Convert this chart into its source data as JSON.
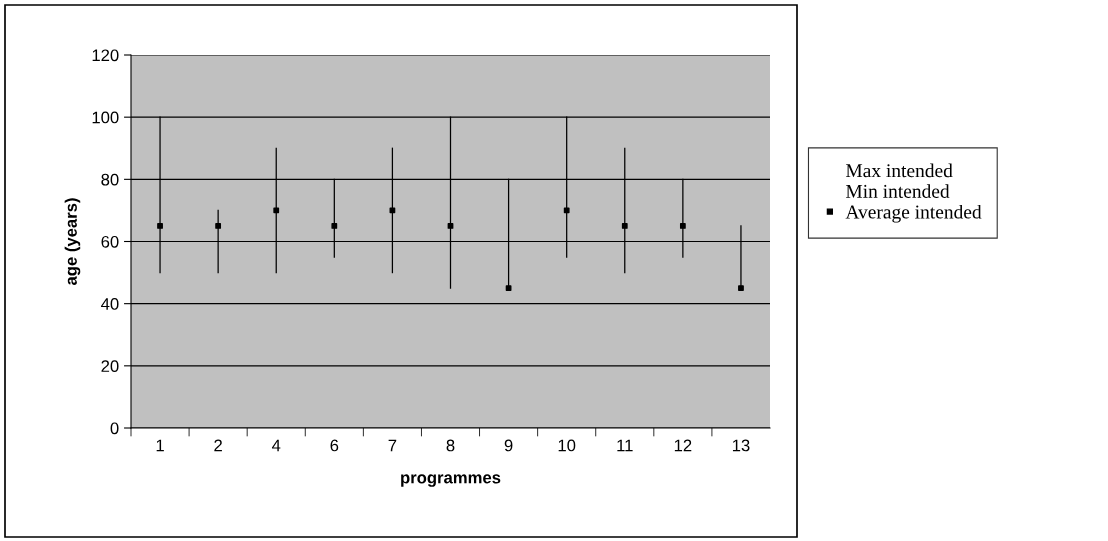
{
  "chart_data": {
    "type": "scatter",
    "xlabel": "programmes",
    "ylabel": "age (years)",
    "categories": [
      "1",
      "2",
      "4",
      "6",
      "7",
      "8",
      "9",
      "10",
      "11",
      "12",
      "13"
    ],
    "series": [
      {
        "name": "Average intended",
        "color": "#000000",
        "marker": "square",
        "values": [
          65,
          65,
          70,
          65,
          70,
          65,
          45,
          70,
          65,
          65,
          45
        ],
        "errors": [
          [
            50,
            100
          ],
          [
            50,
            70
          ],
          [
            50,
            90
          ],
          [
            55,
            80
          ],
          [
            50,
            90
          ],
          [
            45,
            100
          ],
          [
            45,
            80
          ],
          [
            55,
            100
          ],
          [
            50,
            90
          ],
          [
            55,
            80
          ],
          [
            45,
            65
          ]
        ]
      }
    ],
    "annotations": [
      "Max intended",
      "Min intended"
    ],
    "ylim": [
      0,
      120
    ],
    "yticks": [
      0,
      20,
      40,
      60,
      80,
      100,
      120
    ],
    "grid": "y",
    "legend": "right"
  }
}
